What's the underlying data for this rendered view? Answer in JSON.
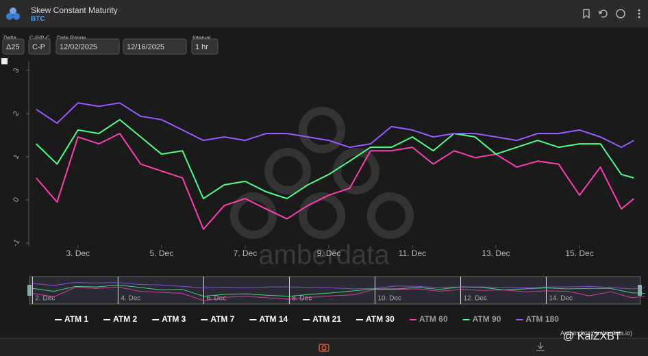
{
  "header": {
    "title": "Skew Constant Maturity",
    "subtitle": "BTC"
  },
  "controls": [
    {
      "label": "Delta",
      "value": "Δ25"
    },
    {
      "label": "C-P/P-C",
      "value": "C-P"
    },
    {
      "label": "Date Range",
      "value": "12/02/2025"
    },
    {
      "label": "",
      "value": "12/16/2025"
    },
    {
      "label": "Interval",
      "value": "1 hr"
    }
  ],
  "chart_data": {
    "type": "line",
    "x": [
      2.0,
      2.5,
      3.0,
      3.5,
      4.0,
      4.5,
      5.0,
      5.5,
      6.0,
      6.5,
      7.0,
      7.5,
      8.0,
      8.5,
      9.0,
      9.5,
      10.0,
      10.5,
      11.0,
      11.5,
      12.0,
      12.5,
      13.0,
      13.5,
      14.0,
      14.5,
      15.0,
      15.5,
      16.0,
      16.3
    ],
    "xlim": [
      1.79,
      16.54
    ],
    "xticks": [
      {
        "value": 3,
        "label": "3. Dec"
      },
      {
        "value": 5,
        "label": "5. Dec"
      },
      {
        "value": 7,
        "label": "7. Dec"
      },
      {
        "value": 9,
        "label": "9. Dec"
      },
      {
        "value": 11,
        "label": "11. Dec"
      },
      {
        "value": 13,
        "label": "13. Dec"
      },
      {
        "value": 15,
        "label": "15. Dec"
      }
    ],
    "ylim": [
      -1.2,
      3.2
    ],
    "yticks": [
      3,
      2,
      1,
      0,
      -1
    ],
    "series": [
      {
        "name": "ATM 1",
        "color": "#ffffff",
        "hidden": true
      },
      {
        "name": "ATM 2",
        "color": "#ffffff",
        "hidden": true
      },
      {
        "name": "ATM 3",
        "color": "#ffffff",
        "hidden": true
      },
      {
        "name": "ATM 7",
        "color": "#ffffff",
        "hidden": true
      },
      {
        "name": "ATM 14",
        "color": "#ffffff",
        "hidden": true
      },
      {
        "name": "ATM 21",
        "color": "#ffffff",
        "hidden": true
      },
      {
        "name": "ATM 30",
        "color": "#ffffff",
        "hidden": true
      },
      {
        "name": "ATM 60",
        "color": "#ff3eb5",
        "values": [
          0.51,
          -0.05,
          1.46,
          1.3,
          1.54,
          0.83,
          0.67,
          0.51,
          -0.68,
          -0.13,
          0.03,
          -0.21,
          -0.44,
          -0.13,
          0.11,
          0.27,
          1.14,
          1.14,
          1.22,
          0.83,
          1.14,
          0.98,
          1.06,
          0.76,
          0.9,
          0.83,
          0.11,
          0.76,
          -0.21,
          0.03
        ]
      },
      {
        "name": "ATM 90",
        "color": "#4dff88",
        "values": [
          1.3,
          0.83,
          1.62,
          1.54,
          1.86,
          1.46,
          1.06,
          1.14,
          0.03,
          0.35,
          0.43,
          0.19,
          0.03,
          0.35,
          0.59,
          0.9,
          1.22,
          1.22,
          1.46,
          1.14,
          1.54,
          1.46,
          1.06,
          1.22,
          1.38,
          1.22,
          1.3,
          1.3,
          0.59,
          0.51
        ]
      },
      {
        "name": "ATM 180",
        "color": "#9b59ff",
        "values": [
          2.1,
          1.78,
          2.25,
          2.17,
          2.25,
          1.94,
          1.86,
          1.62,
          1.38,
          1.46,
          1.38,
          1.54,
          1.54,
          1.46,
          1.38,
          1.22,
          1.3,
          1.7,
          1.62,
          1.46,
          1.54,
          1.54,
          1.46,
          1.38,
          1.54,
          1.54,
          1.62,
          1.46,
          1.22,
          1.38
        ]
      }
    ],
    "navigator": {
      "xlim": [
        1.93,
        16.2
      ],
      "xticks": [
        {
          "value": 2,
          "label": "2. Dec"
        },
        {
          "value": 4,
          "label": "4. Dec"
        },
        {
          "value": 6,
          "label": "6. Dec"
        },
        {
          "value": 8,
          "label": "8. Dec"
        },
        {
          "value": 10,
          "label": "10. Dec"
        },
        {
          "value": 12,
          "label": "12. Dec"
        },
        {
          "value": 14,
          "label": "14. Dec"
        }
      ]
    }
  },
  "watermark": "amberdata",
  "credit": "Amberdata (amberdata.io)",
  "overlay": "@ KaiZXBT"
}
